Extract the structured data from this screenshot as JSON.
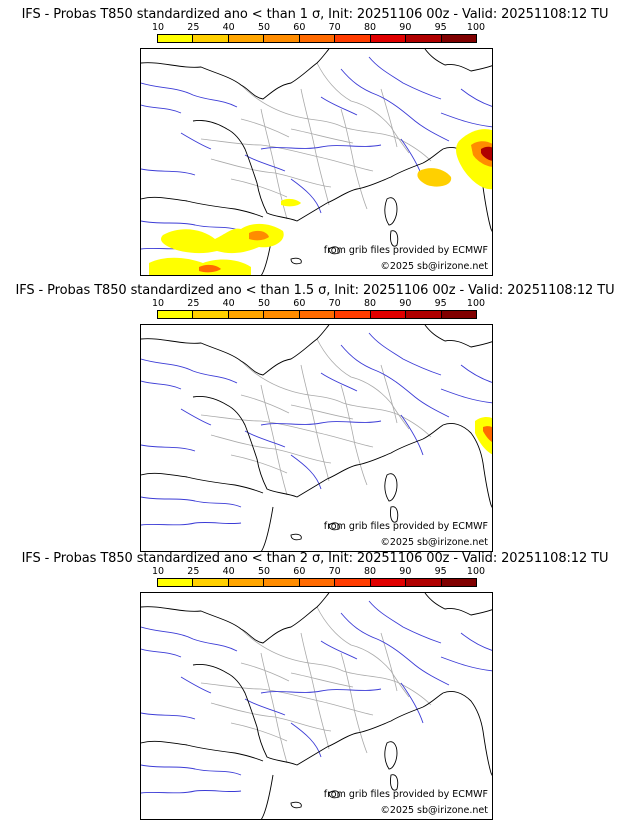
{
  "colors": {
    "scale": [
      "#ffff00",
      "#ffd000",
      "#ffa500",
      "#ff8c00",
      "#ff6a00",
      "#ff3c00",
      "#e00000",
      "#b00000",
      "#800000"
    ],
    "coast": "#000000",
    "border": "#aaaaaa",
    "river": "#3b3bd6"
  },
  "colorbar": {
    "ticks": [
      "10",
      "25",
      "40",
      "50",
      "60",
      "70",
      "80",
      "90",
      "95",
      "100"
    ]
  },
  "panels": [
    {
      "title": "IFS - Probas T850  standardized ano < than 1 σ, Init: 20251106 00z - Valid: 20251108:12 TU",
      "credit_source": "from grib files provided by ECMWF",
      "credit_copyright": "©2025 sb@irizone.net"
    },
    {
      "title": "IFS - Probas T850  standardized ano < than 1.5 σ, Init: 20251106 00z - Valid: 20251108:12 TU",
      "credit_source": "from grib files provided by ECMWF",
      "credit_copyright": "©2025 sb@irizone.net"
    },
    {
      "title": "IFS - Probas T850  standardized ano < than 2 σ, Init: 20251106 00z - Valid: 20251108:12 TU",
      "credit_source": "from grib files provided by ECMWF",
      "credit_copyright": "©2025 sb@irizone.net"
    }
  ]
}
